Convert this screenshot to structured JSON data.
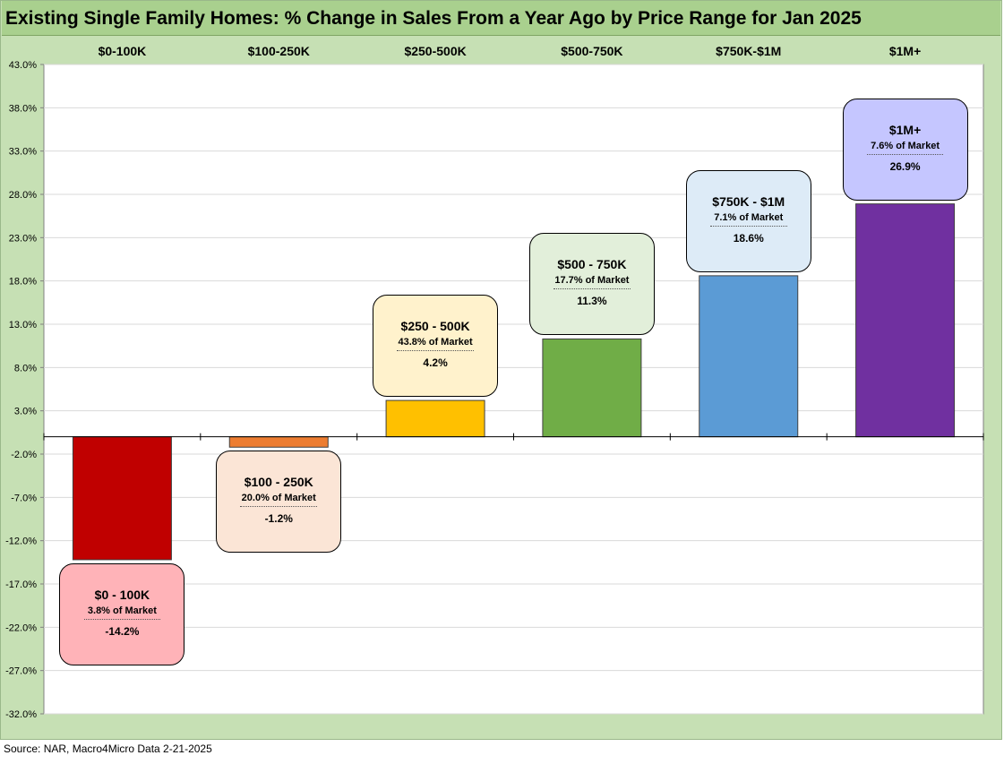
{
  "chart_data": {
    "type": "bar",
    "title": "Existing Single Family Homes: % Change in Sales From a Year Ago by Price Range for Jan 2025",
    "categories": [
      "$0-100K",
      "$100-250K",
      "$250-500K",
      "$500-750K",
      "$750K-$1M",
      "$1M+"
    ],
    "values": [
      -14.2,
      -1.2,
      4.2,
      11.3,
      18.6,
      26.9
    ],
    "value_labels": [
      "-14.2%",
      "-1.2%",
      "4.2%",
      "11.3%",
      "18.6%",
      "26.9%"
    ],
    "data_labels": [
      {
        "name": "$0 - 100K",
        "share": "3.8% of Market"
      },
      {
        "name": "$100 - 250K",
        "share": "20.0% of Market"
      },
      {
        "name": "$250 - 500K",
        "share": "43.8% of Market"
      },
      {
        "name": "$500 - 750K",
        "share": "17.7% of Market"
      },
      {
        "name": "$750K - $1M",
        "share": "7.1% of Market"
      },
      {
        "name": "$1M+",
        "share": "7.6% of Market"
      }
    ],
    "bar_colors": [
      "#c00000",
      "#ed7d31",
      "#ffc000",
      "#70ad47",
      "#5b9bd5",
      "#7030a0"
    ],
    "label_colors": [
      "#ffb3b8",
      "#fbe5d6",
      "#fff2cc",
      "#e2efda",
      "#ddebf7",
      "#c5c6ff"
    ],
    "yticks": [
      "43.0%",
      "38.0%",
      "33.0%",
      "28.0%",
      "23.0%",
      "18.0%",
      "13.0%",
      "8.0%",
      "3.0%",
      "-2.0%",
      "-7.0%",
      "-12.0%",
      "-17.0%",
      "-22.0%",
      "-27.0%",
      "-32.0%"
    ],
    "ylim": [
      -32,
      43
    ],
    "ytick_step": 5,
    "xlabel": "",
    "ylabel": "",
    "grid": true,
    "category_axis_position": "top"
  },
  "source": "Source: NAR, Macro4Micro   Data 2-21-2025"
}
